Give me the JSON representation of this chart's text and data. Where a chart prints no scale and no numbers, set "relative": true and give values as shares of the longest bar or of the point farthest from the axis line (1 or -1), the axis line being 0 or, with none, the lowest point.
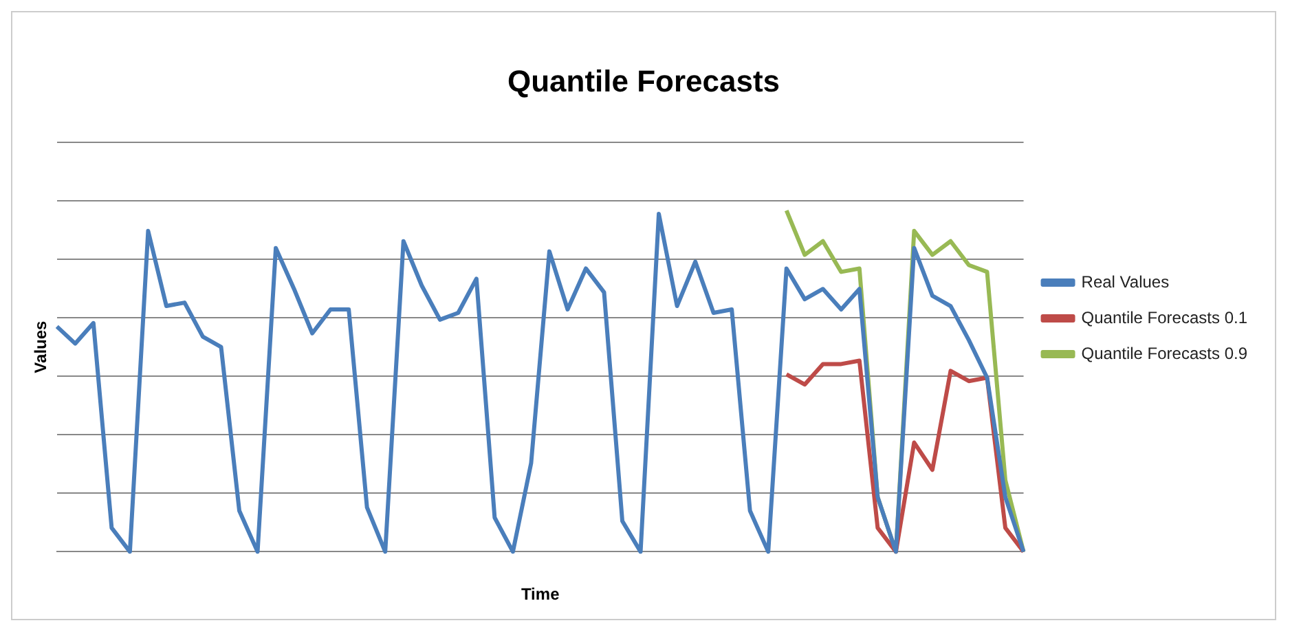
{
  "chart_data": {
    "type": "line",
    "title": "Quantile Forecasts",
    "xlabel": "Time",
    "ylabel": "Values",
    "relative": true,
    "grid": "y",
    "legend": "right",
    "marker": "none",
    "line_style": "solid",
    "categories": [
      null,
      null,
      null,
      null,
      null,
      null,
      null,
      null,
      null,
      null,
      null,
      null,
      null,
      null,
      null,
      null,
      null,
      null,
      null,
      null,
      null,
      null,
      null,
      null,
      null,
      null,
      null,
      null,
      null,
      null,
      null,
      null,
      null,
      null,
      null,
      null,
      null,
      null,
      null,
      null,
      null,
      null,
      null,
      null,
      null,
      null,
      null,
      null,
      null,
      null,
      null,
      null,
      null,
      null
    ],
    "series": [
      {
        "name": "Real Values",
        "color": "#4a7ebb",
        "values": [
          0.66,
          0.61,
          0.67,
          0.07,
          0,
          0.94,
          0.72,
          0.73,
          0.63,
          0.6,
          0.12,
          0,
          0.89,
          0.77,
          0.64,
          0.71,
          0.71,
          0.13,
          0,
          0.91,
          0.78,
          0.68,
          0.7,
          0.8,
          0.1,
          0,
          0.26,
          0.88,
          0.71,
          0.83,
          0.76,
          0.09,
          0,
          0.99,
          0.72,
          0.85,
          0.7,
          0.71,
          0.12,
          0,
          0.83,
          0.74,
          0.77,
          0.71,
          0.77,
          0.16,
          0,
          0.89,
          0.75,
          0.72,
          0.62,
          0.51,
          0.16,
          0
        ]
      },
      {
        "name": "Quantile Forecasts 0.1",
        "color": "#be4b48",
        "values": [
          null,
          null,
          null,
          null,
          null,
          null,
          null,
          null,
          null,
          null,
          null,
          null,
          null,
          null,
          null,
          null,
          null,
          null,
          null,
          null,
          null,
          null,
          null,
          null,
          null,
          null,
          null,
          null,
          null,
          null,
          null,
          null,
          null,
          null,
          null,
          null,
          null,
          null,
          null,
          null,
          0.52,
          0.49,
          0.55,
          0.55,
          0.56,
          0.07,
          0,
          0.32,
          0.24,
          0.53,
          0.5,
          0.51,
          0.07,
          0
        ]
      },
      {
        "name": "Quantile Forecasts 0.9",
        "color": "#98b954",
        "values": [
          null,
          null,
          null,
          null,
          null,
          null,
          null,
          null,
          null,
          null,
          null,
          null,
          null,
          null,
          null,
          null,
          null,
          null,
          null,
          null,
          null,
          null,
          null,
          null,
          null,
          null,
          null,
          null,
          null,
          null,
          null,
          null,
          null,
          null,
          null,
          null,
          null,
          null,
          null,
          null,
          1,
          0.87,
          0.91,
          0.82,
          0.83,
          0.16,
          0,
          0.94,
          0.87,
          0.91,
          0.84,
          0.82,
          0.21,
          0
        ]
      }
    ]
  }
}
